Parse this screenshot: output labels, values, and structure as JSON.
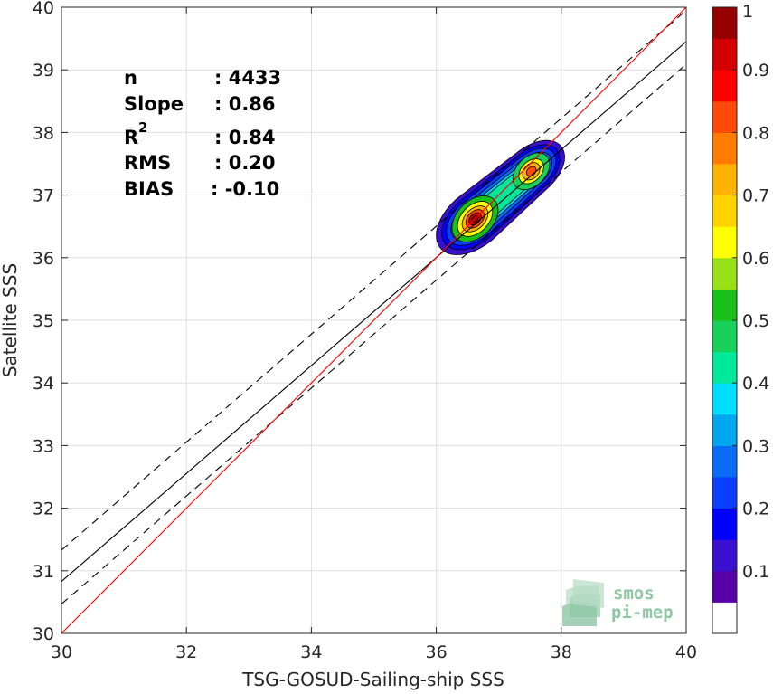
{
  "chart_data": {
    "type": "scatter",
    "subtype": "density-contour",
    "xlabel": "TSG-GOSUD-Sailing-ship SSS",
    "ylabel": "Satellite SSS",
    "xlim": [
      30,
      40
    ],
    "ylim": [
      30,
      40
    ],
    "xticks": [
      30,
      32,
      34,
      36,
      38,
      40
    ],
    "yticks": [
      30,
      31,
      32,
      33,
      34,
      35,
      36,
      37,
      38,
      39,
      40
    ],
    "grid": true,
    "stats": [
      {
        "label": "n",
        "value": ": 4433"
      },
      {
        "label": "Slope",
        "value": ": 0.86"
      },
      {
        "label": "R",
        "superscript": "2",
        "value": ": 0.84"
      },
      {
        "label": "RMS",
        "value": ": 0.20"
      },
      {
        "label": "BIAS",
        "value": ": -0.10"
      }
    ],
    "lines": {
      "identity": {
        "from": [
          30,
          30
        ],
        "to": [
          40,
          40
        ],
        "color": "#ff0000"
      },
      "regression": {
        "from": [
          30,
          30.83
        ],
        "to": [
          40,
          39.45
        ],
        "color": "#000000"
      },
      "upper_bound": {
        "from": [
          30,
          31.33
        ],
        "to": [
          40,
          39.95
        ],
        "style": "dashed"
      },
      "lower_bound": {
        "from": [
          30,
          30.47
        ],
        "to": [
          40,
          39.09
        ],
        "style": "dashed"
      }
    },
    "density_peaks": [
      {
        "x": 36.62,
        "y": 36.62,
        "value": 1.0
      },
      {
        "x": 37.52,
        "y": 37.38,
        "value": 0.8
      }
    ],
    "colorbar": {
      "min": 0,
      "max": 1,
      "ticks": [
        "0.1",
        "0.2",
        "0.3",
        "0.4",
        "0.5",
        "0.6",
        "0.7",
        "0.8",
        "0.9",
        "1"
      ],
      "levels": 20,
      "colors": [
        "#ffffff",
        "#5a00a8",
        "#3a10d0",
        "#0000ff",
        "#0a3fff",
        "#0a6bf5",
        "#00a6ef",
        "#00ddff",
        "#00e89a",
        "#18d05a",
        "#18c018",
        "#98e018",
        "#ffff00",
        "#ffd200",
        "#ffb200",
        "#ff7c00",
        "#ff4a0a",
        "#ff0000",
        "#d20000",
        "#960000"
      ]
    }
  },
  "logo": {
    "line1": "smos",
    "line2": "pi-mep"
  }
}
